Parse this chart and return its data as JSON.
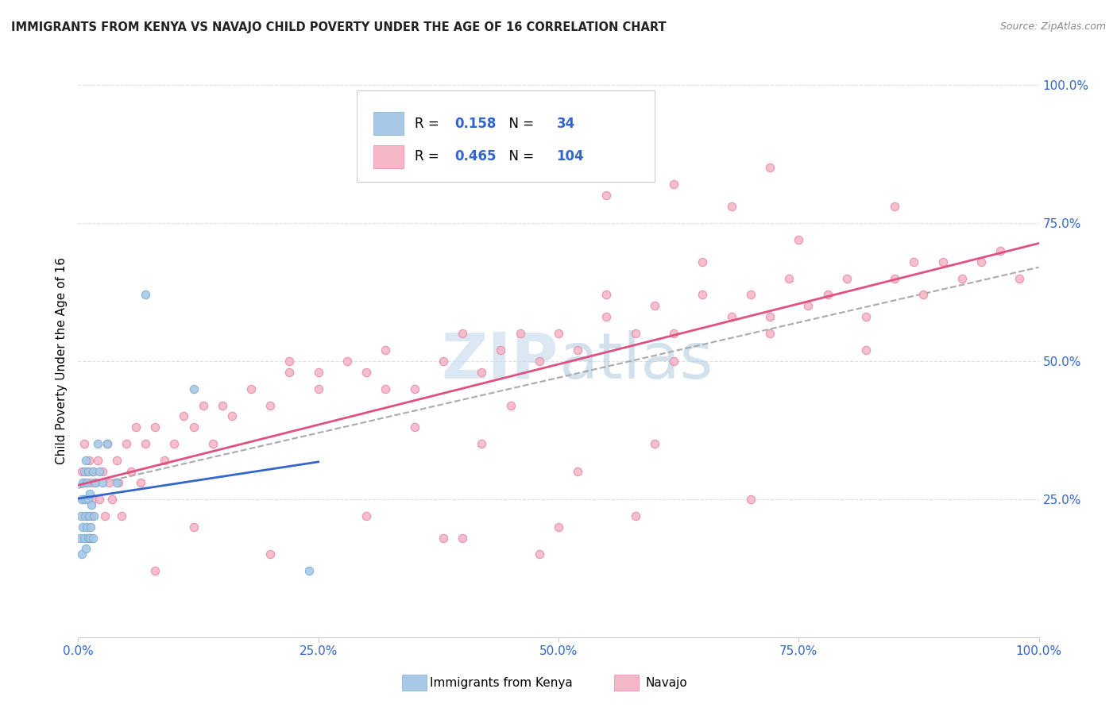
{
  "title": "IMMIGRANTS FROM KENYA VS NAVAJO CHILD POVERTY UNDER THE AGE OF 16 CORRELATION CHART",
  "source": "Source: ZipAtlas.com",
  "ylabel": "Child Poverty Under the Age of 16",
  "R_blue": 0.158,
  "N_blue": 34,
  "R_pink": 0.465,
  "N_pink": 104,
  "legend_labels": [
    "Immigrants from Kenya",
    "Navajo"
  ],
  "blue_color": "#a8c8e8",
  "blue_edge_color": "#7aaed0",
  "pink_color": "#f4b8c8",
  "pink_edge_color": "#e888a8",
  "blue_line_color": "#3366cc",
  "pink_line_color": "#e05080",
  "gray_dash_color": "#aaaaaa",
  "watermark_color": "#ccdded",
  "title_color": "#222222",
  "source_color": "#888888",
  "tick_color": "#3366cc",
  "grid_color": "#e0e0e0",
  "x_ticks": [
    0.0,
    0.25,
    0.5,
    0.75,
    1.0
  ],
  "x_tick_labels": [
    "0.0%",
    "25.0%",
    "50.0%",
    "75.0%",
    "100.0%"
  ],
  "y_ticks": [
    0.25,
    0.5,
    0.75,
    1.0
  ],
  "y_tick_labels": [
    "25.0%",
    "50.0%",
    "75.0%",
    "100.0%"
  ],
  "blue_scatter_x": [
    0.002,
    0.003,
    0.004,
    0.004,
    0.005,
    0.005,
    0.006,
    0.006,
    0.007,
    0.007,
    0.008,
    0.008,
    0.009,
    0.009,
    0.01,
    0.01,
    0.01,
    0.011,
    0.012,
    0.012,
    0.013,
    0.014,
    0.015,
    0.015,
    0.016,
    0.018,
    0.02,
    0.022,
    0.025,
    0.03,
    0.04,
    0.07,
    0.12,
    0.24
  ],
  "blue_scatter_y": [
    0.18,
    0.22,
    0.15,
    0.25,
    0.2,
    0.28,
    0.18,
    0.3,
    0.22,
    0.25,
    0.16,
    0.32,
    0.2,
    0.28,
    0.18,
    0.25,
    0.3,
    0.22,
    0.18,
    0.26,
    0.2,
    0.24,
    0.18,
    0.3,
    0.22,
    0.28,
    0.35,
    0.3,
    0.28,
    0.35,
    0.28,
    0.62,
    0.45,
    0.12
  ],
  "pink_scatter_x": [
    0.004,
    0.005,
    0.006,
    0.007,
    0.008,
    0.009,
    0.01,
    0.011,
    0.012,
    0.013,
    0.014,
    0.015,
    0.016,
    0.018,
    0.02,
    0.022,
    0.025,
    0.028,
    0.03,
    0.032,
    0.035,
    0.04,
    0.042,
    0.045,
    0.05,
    0.055,
    0.06,
    0.065,
    0.07,
    0.08,
    0.09,
    0.1,
    0.11,
    0.12,
    0.13,
    0.14,
    0.16,
    0.18,
    0.2,
    0.22,
    0.25,
    0.28,
    0.3,
    0.32,
    0.35,
    0.38,
    0.4,
    0.42,
    0.44,
    0.46,
    0.48,
    0.5,
    0.52,
    0.55,
    0.58,
    0.6,
    0.62,
    0.65,
    0.68,
    0.7,
    0.72,
    0.74,
    0.76,
    0.78,
    0.8,
    0.82,
    0.85,
    0.87,
    0.88,
    0.9,
    0.92,
    0.94,
    0.96,
    0.98,
    0.15,
    0.25,
    0.35,
    0.45,
    0.55,
    0.65,
    0.75,
    0.85,
    0.42,
    0.52,
    0.62,
    0.72,
    0.82,
    0.3,
    0.5,
    0.7,
    0.55,
    0.68,
    0.38,
    0.48,
    0.58,
    0.22,
    0.32,
    0.62,
    0.72,
    0.08,
    0.12,
    0.2,
    0.4,
    0.6
  ],
  "pink_scatter_y": [
    0.3,
    0.25,
    0.35,
    0.28,
    0.22,
    0.3,
    0.25,
    0.32,
    0.18,
    0.28,
    0.22,
    0.3,
    0.25,
    0.28,
    0.32,
    0.25,
    0.3,
    0.22,
    0.35,
    0.28,
    0.25,
    0.32,
    0.28,
    0.22,
    0.35,
    0.3,
    0.38,
    0.28,
    0.35,
    0.38,
    0.32,
    0.35,
    0.4,
    0.38,
    0.42,
    0.35,
    0.4,
    0.45,
    0.42,
    0.48,
    0.45,
    0.5,
    0.48,
    0.52,
    0.45,
    0.5,
    0.55,
    0.48,
    0.52,
    0.55,
    0.5,
    0.55,
    0.52,
    0.58,
    0.55,
    0.6,
    0.55,
    0.62,
    0.58,
    0.62,
    0.58,
    0.65,
    0.6,
    0.62,
    0.65,
    0.58,
    0.65,
    0.68,
    0.62,
    0.68,
    0.65,
    0.68,
    0.7,
    0.65,
    0.42,
    0.48,
    0.38,
    0.42,
    0.62,
    0.68,
    0.72,
    0.78,
    0.35,
    0.3,
    0.5,
    0.55,
    0.52,
    0.22,
    0.2,
    0.25,
    0.8,
    0.78,
    0.18,
    0.15,
    0.22,
    0.5,
    0.45,
    0.82,
    0.85,
    0.12,
    0.2,
    0.15,
    0.18,
    0.35
  ]
}
